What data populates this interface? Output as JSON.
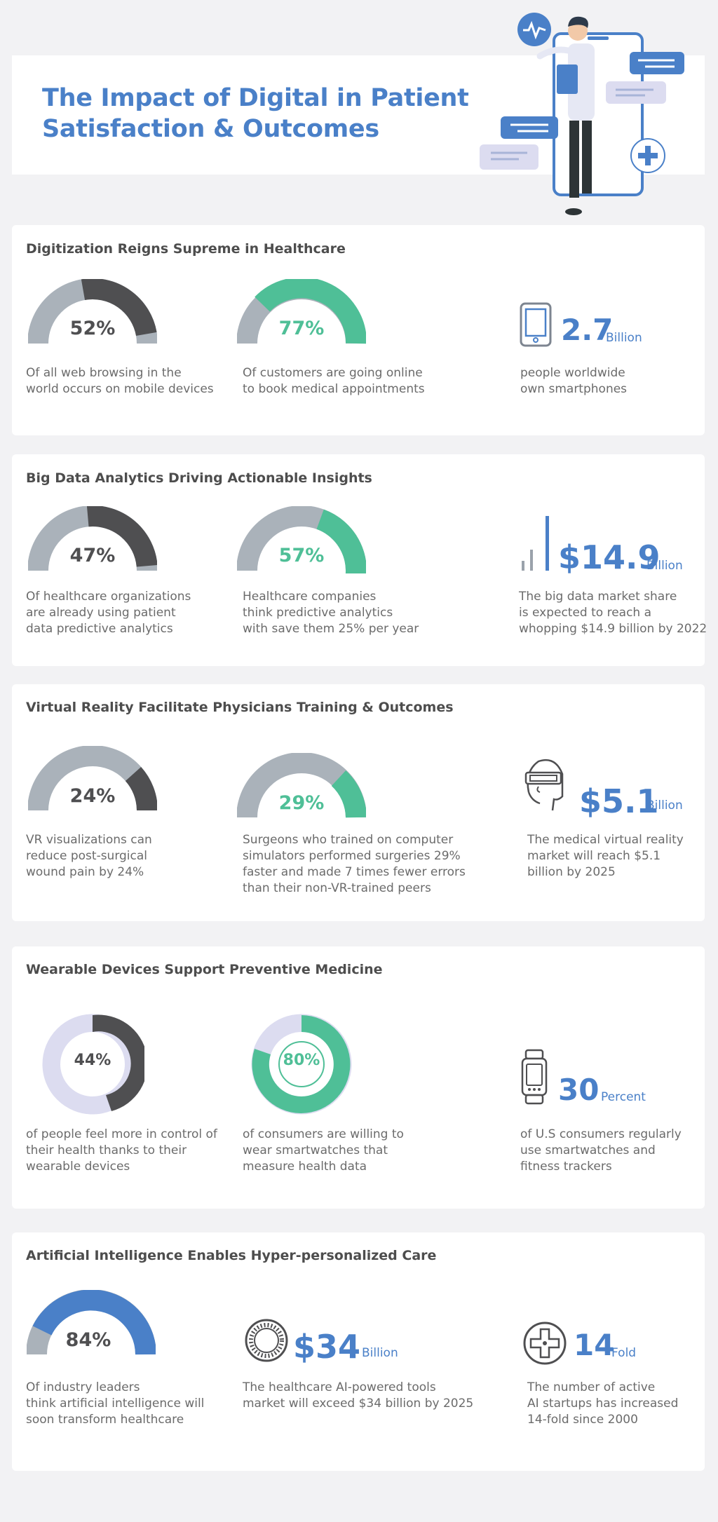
{
  "header": {
    "title_line1": "The Impact of Digital in Patient",
    "title_line2": "Satisfaction & Outcomes"
  },
  "colors": {
    "blue": "#4a80c8",
    "green": "#4fbf97",
    "gray": "#aab2ba",
    "dark": "#4f4f51",
    "lavender": "#dcdcf0"
  },
  "sections": [
    {
      "title": "Digitization Reigns Supreme in Healthcare",
      "stats": [
        {
          "value": "52%",
          "desc": [
            "Of all web browsing in the",
            "world occurs on mobile devices"
          ],
          "icon": "gauge"
        },
        {
          "value": "77%",
          "desc": [
            "Of customers are going online",
            "to book medical appointments"
          ],
          "icon": "gauge"
        },
        {
          "value": "2.7",
          "unit": "Billion",
          "desc": [
            "people worldwide",
            "own smartphones"
          ],
          "icon": "smartphone-icon"
        }
      ]
    },
    {
      "title": "Big Data Analytics Driving Actionable Insights",
      "stats": [
        {
          "value": "47%",
          "desc": [
            "Of healthcare organizations",
            "are already using patient",
            "data predictive analytics"
          ],
          "icon": "gauge"
        },
        {
          "value": "57%",
          "desc": [
            "Healthcare companies",
            "think predictive analytics",
            "with save them 25% per year"
          ],
          "icon": "gauge"
        },
        {
          "value": "$14.9",
          "unit": "Billion",
          "desc": [
            "The big data market share",
            "is expected to reach a",
            "whopping $14.9 billion by 2022"
          ],
          "icon": "bar-chart-icon"
        }
      ]
    },
    {
      "title": "Virtual Reality Facilitate Physicians Training & Outcomes",
      "stats": [
        {
          "value": "24%",
          "desc": [
            "VR visualizations can",
            "reduce post-surgical",
            "wound pain by 24%"
          ],
          "icon": "gauge"
        },
        {
          "value": "29%",
          "desc": [
            "Surgeons who trained on computer",
            "simulators performed surgeries 29%",
            "faster and made 7 times fewer errors",
            "than their non-VR-trained peers"
          ],
          "icon": "gauge"
        },
        {
          "value": "$5.1",
          "unit": "Billion",
          "desc": [
            "The medical virtual reality",
            "market will reach $5.1",
            "billion by 2025"
          ],
          "icon": "vr-headset-icon"
        }
      ]
    },
    {
      "title": "Wearable Devices Support Preventive Medicine",
      "stats": [
        {
          "value": "44%",
          "desc": [
            "of people feel more in control of",
            "their health thanks to their",
            "wearable devices"
          ],
          "icon": "donut"
        },
        {
          "value": "80%",
          "desc": [
            "of consumers are willing to",
            "wear smartwatches that",
            "measure health data"
          ],
          "icon": "donut"
        },
        {
          "value": "30",
          "unit": "Percent",
          "desc": [
            "of U.S consumers regularly",
            "use smartwatches and",
            "fitness trackers"
          ],
          "icon": "smartwatch-icon"
        }
      ]
    },
    {
      "title": "Artificial Intelligence Enables Hyper-personalized Care",
      "stats": [
        {
          "value": "84%",
          "desc": [
            "Of industry leaders",
            "think artificial intelligence will",
            "soon transform healthcare"
          ],
          "icon": "gauge"
        },
        {
          "value": "$34",
          "unit": "Billion",
          "desc": [
            "The healthcare AI-powered tools",
            "market will exceed $34 billion by 2025"
          ],
          "icon": "ring-icon"
        },
        {
          "value": "14",
          "unit": "Fold",
          "desc": [
            "The number of active",
            "AI startups has increased",
            "14-fold since 2000"
          ],
          "icon": "gamepad-icon"
        }
      ]
    }
  ],
  "chart_data": [
    {
      "type": "pie",
      "title": "Digitization Reigns Supreme in Healthcare",
      "categories": [
        "Mobile web browsing",
        "Customers booking medical appointments online"
      ],
      "values": [
        52,
        77
      ]
    },
    {
      "type": "pie",
      "title": "Big Data Analytics Driving Actionable Insights",
      "categories": [
        "Organizations using predictive analytics",
        "Companies expecting 25% savings"
      ],
      "values": [
        47,
        57
      ]
    },
    {
      "type": "pie",
      "title": "Virtual Reality Facilitate Physicians Training & Outcomes",
      "categories": [
        "Post-surgical wound pain reduction",
        "Faster surgeries"
      ],
      "values": [
        24,
        29
      ]
    },
    {
      "type": "pie",
      "title": "Wearable Devices Support Preventive Medicine",
      "categories": [
        "More in control of health",
        "Willing to wear smartwatches"
      ],
      "values": [
        44,
        80
      ]
    },
    {
      "type": "pie",
      "title": "Artificial Intelligence Enables Hyper-personalized Care",
      "categories": [
        "Leaders expecting AI to transform healthcare"
      ],
      "values": [
        84
      ]
    }
  ]
}
